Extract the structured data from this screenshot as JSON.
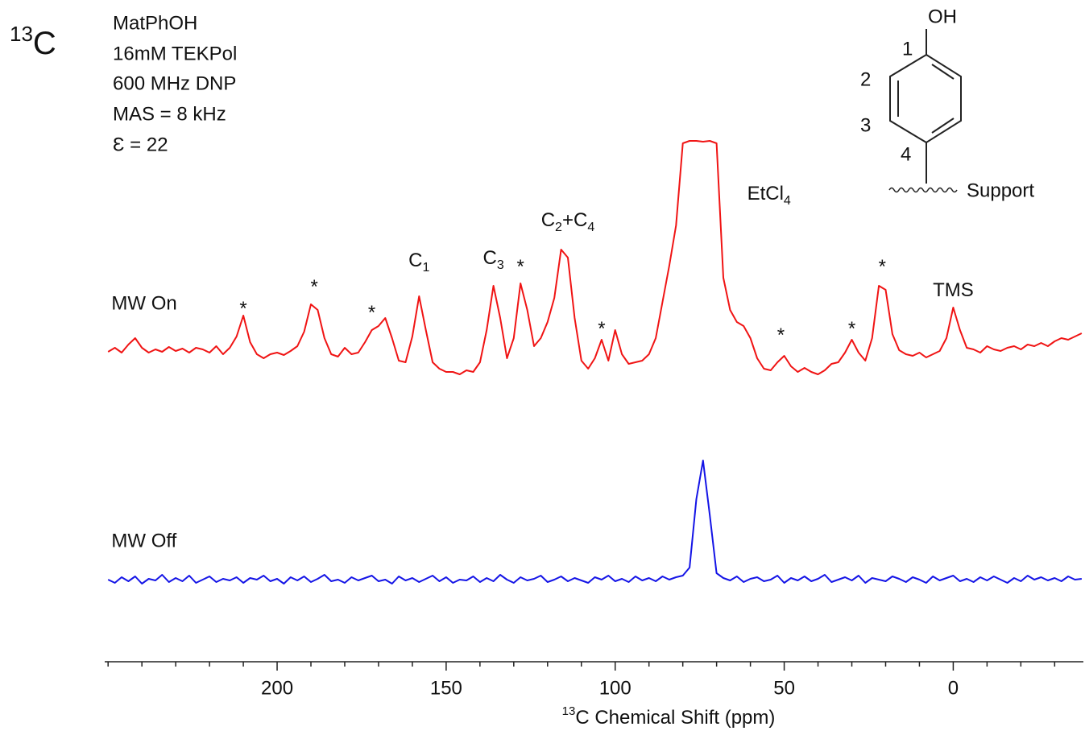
{
  "chart_data": {
    "type": "line",
    "panel_label": [
      {
        "text": "13",
        "sup": true
      },
      {
        "text": "C"
      }
    ],
    "parameters": [
      "MatPhOH",
      "16mM TEKPol",
      "600 MHz DNP",
      "MAS = 8 kHz",
      "Ɛ = 22"
    ],
    "structure": {
      "substituent": "OH",
      "atoms": [
        "1",
        "2",
        "3",
        "4"
      ],
      "support": "Support"
    },
    "x_label": [
      {
        "text": "13",
        "sup": true
      },
      {
        "text": "C Chemical Shift (ppm)"
      }
    ],
    "xlim": [
      251,
      -38.5
    ],
    "ylim": [
      0,
      630
    ],
    "xticks": [
      200,
      150,
      100,
      50,
      0
    ],
    "xminorticks": [
      250,
      240,
      230,
      220,
      210,
      190,
      180,
      170,
      160,
      140,
      130,
      120,
      110,
      90,
      80,
      70,
      60,
      40,
      30,
      20,
      10,
      -10,
      -20,
      -30
    ],
    "x": [
      250,
      248,
      246,
      244,
      242,
      240,
      238,
      236,
      234,
      232,
      230,
      228,
      226,
      224,
      222,
      220,
      218,
      216,
      214,
      212,
      210,
      208,
      206,
      204,
      202,
      200,
      198,
      196,
      194,
      192,
      190,
      188,
      186,
      184,
      182,
      180,
      178,
      176,
      174,
      172,
      170,
      168,
      166,
      164,
      162,
      160,
      158,
      156,
      154,
      152,
      150,
      148,
      146,
      144,
      142,
      140,
      138,
      136,
      134,
      132,
      130,
      128,
      126,
      124,
      122,
      120,
      118,
      116,
      114,
      112,
      110,
      108,
      106,
      104,
      102,
      100,
      98,
      96,
      94,
      92,
      90,
      88,
      86,
      84,
      82,
      80,
      78,
      76,
      74,
      72,
      70,
      68,
      66,
      64,
      62,
      60,
      58,
      56,
      54,
      52,
      50,
      48,
      46,
      44,
      42,
      40,
      38,
      36,
      34,
      32,
      30,
      28,
      26,
      24,
      22,
      20,
      18,
      16,
      14,
      12,
      10,
      8,
      6,
      4,
      2,
      0,
      -2,
      -4,
      -6,
      -8,
      -10,
      -12,
      -14,
      -16,
      -18,
      -20,
      -22,
      -24,
      -26,
      -28,
      -30,
      -32,
      -34,
      -36,
      -38
    ],
    "series": [
      {
        "name": "MW On",
        "color": "#f01414",
        "label_x": 249,
        "label_y": 422,
        "values": [
          363,
          368,
          362,
          372,
          380,
          368,
          362,
          366,
          363,
          369,
          364,
          367,
          362,
          368,
          366,
          362,
          370,
          360,
          368,
          382,
          408,
          375,
          360,
          355,
          360,
          362,
          359,
          364,
          370,
          388,
          422,
          415,
          380,
          360,
          357,
          368,
          360,
          362,
          375,
          390,
          395,
          405,
          380,
          352,
          350,
          382,
          432,
          390,
          350,
          342,
          338,
          338,
          335,
          340,
          338,
          350,
          390,
          445,
          405,
          355,
          380,
          448,
          415,
          370,
          380,
          400,
          430,
          490,
          480,
          405,
          352,
          342,
          355,
          378,
          352,
          390,
          360,
          348,
          350,
          352,
          360,
          380,
          425,
          470,
          520,
          622,
          625,
          625,
          624,
          625,
          622,
          455,
          415,
          400,
          395,
          380,
          355,
          342,
          340,
          350,
          358,
          345,
          338,
          343,
          338,
          335,
          340,
          348,
          350,
          362,
          378,
          362,
          352,
          380,
          445,
          440,
          385,
          365,
          360,
          358,
          362,
          356,
          360,
          364,
          380,
          418,
          390,
          368,
          366,
          362,
          370,
          366,
          364,
          368,
          370,
          366,
          372,
          370,
          374,
          370,
          376,
          380,
          378,
          382,
          386
        ]
      },
      {
        "name": "MW Off",
        "color": "#1414e6",
        "label_x": 249,
        "label_y": 127,
        "values": [
          80,
          76,
          83,
          78,
          84,
          75,
          81,
          79,
          86,
          77,
          82,
          78,
          85,
          76,
          80,
          84,
          77,
          81,
          79,
          83,
          76,
          82,
          80,
          85,
          78,
          81,
          75,
          83,
          79,
          84,
          77,
          81,
          86,
          78,
          80,
          76,
          83,
          79,
          82,
          85,
          78,
          80,
          75,
          84,
          79,
          82,
          77,
          81,
          85,
          78,
          83,
          76,
          80,
          79,
          84,
          77,
          82,
          78,
          86,
          80,
          76,
          83,
          79,
          81,
          85,
          77,
          80,
          84,
          78,
          82,
          79,
          76,
          83,
          80,
          85,
          78,
          81,
          77,
          84,
          79,
          82,
          78,
          84,
          80,
          83,
          85,
          95,
          180,
          228,
          160,
          88,
          82,
          79,
          84,
          77,
          81,
          83,
          78,
          80,
          85,
          76,
          82,
          79,
          84,
          78,
          81,
          86,
          77,
          80,
          83,
          79,
          85,
          76,
          82,
          80,
          78,
          84,
          81,
          77,
          83,
          80,
          76,
          84,
          79,
          82,
          85,
          78,
          81,
          77,
          83,
          79,
          84,
          80,
          76,
          82,
          78,
          85,
          80,
          83,
          79,
          82,
          78,
          84,
          80,
          81
        ]
      }
    ],
    "annotations": [
      {
        "x": 158,
        "y": 475,
        "segments": [
          {
            "text": "C"
          },
          {
            "text": "1",
            "sub": true
          }
        ]
      },
      {
        "x": 136,
        "y": 478,
        "segments": [
          {
            "text": "C"
          },
          {
            "text": "3",
            "sub": true
          }
        ]
      },
      {
        "x": 114,
        "y": 525,
        "segments": [
          {
            "text": "C"
          },
          {
            "text": "2",
            "sub": true
          },
          {
            "text": "+C"
          },
          {
            "text": "4",
            "sub": true
          }
        ]
      },
      {
        "x": 54.5,
        "y": 558,
        "segments": [
          {
            "text": "EtCl"
          },
          {
            "text": "4",
            "sub": true
          }
        ]
      },
      {
        "x": 0,
        "y": 438,
        "segments": [
          {
            "text": "TMS"
          }
        ]
      },
      {
        "x": 210,
        "y": 415,
        "segments": [
          {
            "text": "*"
          }
        ]
      },
      {
        "x": 189,
        "y": 442,
        "segments": [
          {
            "text": "*"
          }
        ]
      },
      {
        "x": 172,
        "y": 410,
        "segments": [
          {
            "text": "*"
          }
        ]
      },
      {
        "x": 128,
        "y": 467,
        "segments": [
          {
            "text": "*"
          }
        ]
      },
      {
        "x": 104,
        "y": 390,
        "segments": [
          {
            "text": "*"
          }
        ]
      },
      {
        "x": 51,
        "y": 382,
        "segments": [
          {
            "text": "*"
          }
        ]
      },
      {
        "x": 30,
        "y": 390,
        "segments": [
          {
            "text": "*"
          }
        ]
      },
      {
        "x": 21,
        "y": 467,
        "segments": [
          {
            "text": "*"
          }
        ]
      }
    ]
  }
}
